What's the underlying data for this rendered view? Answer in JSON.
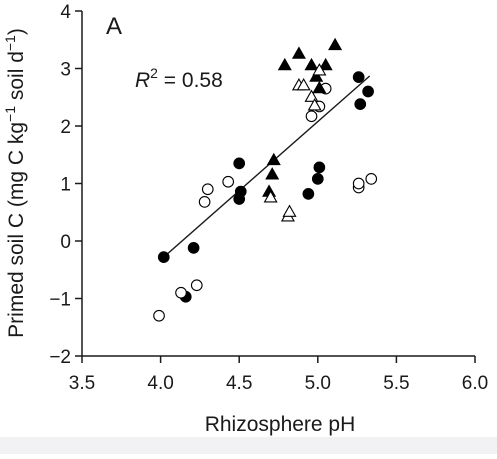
{
  "chart_data": {
    "type": "scatter",
    "panel_label": "A",
    "xlabel": "Rhizosphere pH",
    "ylabel_main": "Primed soil C (mg C kg",
    "ylabel_sup1": "−1",
    "ylabel_mid": " soil d",
    "ylabel_sup2": "−1",
    "ylabel_end": ")",
    "annotation_prefix": "R",
    "annotation_sup": "2",
    "annotation_value": " = 0.58",
    "xlim": [
      3.5,
      6.0
    ],
    "ylim": [
      -2,
      4
    ],
    "xticks": [
      3.5,
      4.0,
      4.5,
      5.0,
      5.5,
      6.0
    ],
    "xtick_labels": [
      "3.5",
      "4.0",
      "4.5",
      "5.0",
      "5.5",
      "6.0"
    ],
    "yticks": [
      -2,
      -1,
      0,
      1,
      2,
      3,
      4
    ],
    "ytick_labels": [
      "−2",
      "−1",
      "0",
      "1",
      "2",
      "3",
      "4"
    ],
    "grid": false,
    "trendline": {
      "x": [
        4.02,
        5.33
      ],
      "y": [
        -0.28,
        2.87
      ]
    },
    "series": [
      {
        "marker": "filled-circle",
        "points": [
          [
            4.02,
            -0.28
          ],
          [
            4.16,
            -0.97
          ],
          [
            4.21,
            -0.12
          ],
          [
            4.5,
            1.35
          ],
          [
            4.5,
            0.73
          ],
          [
            4.51,
            0.86
          ],
          [
            4.94,
            0.82
          ],
          [
            5.0,
            1.08
          ],
          [
            5.01,
            1.28
          ],
          [
            5.26,
            2.85
          ],
          [
            5.27,
            2.38
          ],
          [
            5.32,
            2.6
          ]
        ]
      },
      {
        "marker": "open-circle",
        "points": [
          [
            3.99,
            -1.3
          ],
          [
            4.13,
            -0.9
          ],
          [
            4.23,
            -0.77
          ],
          [
            4.28,
            0.68
          ],
          [
            4.3,
            0.9
          ],
          [
            4.43,
            1.03
          ],
          [
            4.96,
            2.17
          ],
          [
            5.01,
            2.34
          ],
          [
            5.05,
            2.65
          ],
          [
            5.26,
            0.93
          ],
          [
            5.26,
            1.0
          ],
          [
            5.34,
            1.08
          ]
        ]
      },
      {
        "marker": "filled-triangle",
        "points": [
          [
            4.69,
            0.85
          ],
          [
            4.71,
            1.15
          ],
          [
            4.72,
            1.4
          ],
          [
            4.79,
            3.05
          ],
          [
            4.88,
            3.25
          ],
          [
            4.96,
            3.05
          ],
          [
            4.99,
            2.85
          ],
          [
            5.01,
            2.65
          ],
          [
            5.05,
            3.05
          ],
          [
            5.11,
            3.4
          ]
        ]
      },
      {
        "marker": "open-triangle",
        "points": [
          [
            4.7,
            0.75
          ],
          [
            4.81,
            0.42
          ],
          [
            4.82,
            0.5
          ],
          [
            4.88,
            2.7
          ],
          [
            4.91,
            2.7
          ],
          [
            4.96,
            2.5
          ],
          [
            4.98,
            2.35
          ],
          [
            5.01,
            2.96
          ]
        ]
      }
    ]
  }
}
